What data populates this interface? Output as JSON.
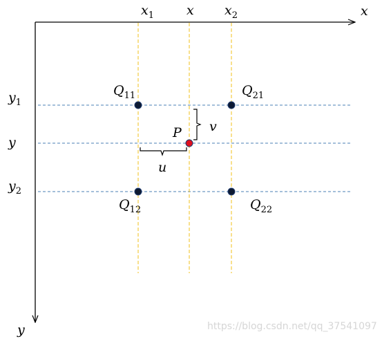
{
  "colors": {
    "axis": "#000000",
    "horizontal_lines": "#4a7fb5",
    "vertical_lines": "#f2c118",
    "known_point_fill": "#0d1a33",
    "query_point_fill": "#e0101e",
    "query_point_stroke": "#1f3b6e",
    "watermark": "#d6d6d6"
  },
  "axes": {
    "x_axis_label": "x",
    "y_axis_label": "y"
  },
  "columns": {
    "x1": {
      "base": "x",
      "sub": "1"
    },
    "x": {
      "base": "x",
      "sub": ""
    },
    "x2": {
      "base": "x",
      "sub": "2"
    }
  },
  "rows": {
    "y1": {
      "base": "y",
      "sub": "1"
    },
    "y": {
      "base": "y",
      "sub": ""
    },
    "y2": {
      "base": "y",
      "sub": "2"
    }
  },
  "points": {
    "q11": {
      "base": "Q",
      "sub": "11"
    },
    "q21": {
      "base": "Q",
      "sub": "21"
    },
    "q12": {
      "base": "Q",
      "sub": "12"
    },
    "q22": {
      "base": "Q",
      "sub": "22"
    },
    "p": {
      "base": "P"
    }
  },
  "offsets": {
    "u": "u",
    "v": "v"
  },
  "watermark": "https://blog.csdn.net/qq_37541097"
}
